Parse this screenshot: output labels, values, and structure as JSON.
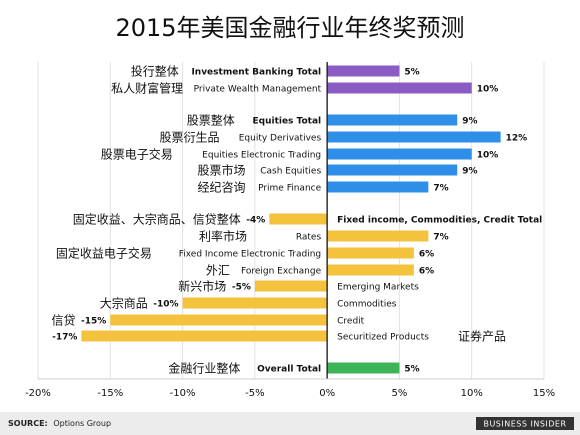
{
  "chart_data": {
    "type": "bar",
    "orientation": "horizontal",
    "title": "2015年美国金融行业年终奖预测",
    "x_ticks": [
      "-20%",
      "-15%",
      "-10%",
      "-5%",
      "0%",
      "5%",
      "10%",
      "15%"
    ],
    "xlim": [
      -20,
      15
    ],
    "grid": "vertical",
    "source": "Options Group",
    "source_label": "SOURCE:",
    "brand": "BUSINESS INSIDER",
    "colors": {
      "purple": "#8b5bc4",
      "blue": "#2f8fe8",
      "yellow": "#f5c23e",
      "green": "#3cb55a",
      "grid": "#e2e2e2",
      "zero": "#222222"
    },
    "rows": [
      {
        "zh": "投行整体",
        "en": "Investment Banking Total",
        "en_bold": true,
        "value": 5,
        "value_label": "5%",
        "color": "purple"
      },
      {
        "zh": "私人财富管理",
        "en": "Private Wealth Management",
        "en_bold": false,
        "value": 10,
        "value_label": "10%",
        "color": "purple"
      },
      {
        "zh": "股票整体",
        "en": "Equities Total",
        "en_bold": true,
        "value": 9,
        "value_label": "9%",
        "color": "blue"
      },
      {
        "zh": "股票衍生品",
        "en": "Equity Derivatives",
        "en_bold": false,
        "value": 12,
        "value_label": "12%",
        "color": "blue"
      },
      {
        "zh": "股票电子交易",
        "en": "Equities Electronic Trading",
        "en_bold": false,
        "value": 10,
        "value_label": "10%",
        "color": "blue"
      },
      {
        "zh": "股票市场",
        "en": "Cash Equities",
        "en_bold": false,
        "value": 9,
        "value_label": "9%",
        "color": "blue"
      },
      {
        "zh": "经纪咨询",
        "en": "Prime Finance",
        "en_bold": false,
        "value": 7,
        "value_label": "7%",
        "color": "blue"
      },
      {
        "zh": "固定收益、大宗商品、信贷整体",
        "en": "Fixed income, Commodities, Credit Total",
        "en_bold": true,
        "value": -4,
        "value_label": "-4%",
        "color": "yellow"
      },
      {
        "zh": "利率市场",
        "en": "Rates",
        "en_bold": false,
        "value": 7,
        "value_label": "7%",
        "color": "yellow"
      },
      {
        "zh": "固定收益电子交易",
        "en": "Fixed Income Electronic Trading",
        "en_bold": false,
        "value": 6,
        "value_label": "6%",
        "color": "yellow"
      },
      {
        "zh": "外汇",
        "en": "Foreign Exchange",
        "en_bold": false,
        "value": 6,
        "value_label": "6%",
        "color": "yellow"
      },
      {
        "zh": "新兴市场",
        "en": "Emerging Markets",
        "en_bold": false,
        "value": -5,
        "value_label": "-5%",
        "color": "yellow"
      },
      {
        "zh": "大宗商品",
        "en": "Commodities",
        "en_bold": false,
        "value": -10,
        "value_label": "-10%",
        "color": "yellow"
      },
      {
        "zh": "信贷",
        "en": "Credit",
        "en_bold": false,
        "value": -15,
        "value_label": "-15%",
        "color": "yellow"
      },
      {
        "zh": "证券产品",
        "en": "Securitized Products",
        "en_bold": false,
        "value": -17,
        "value_label": "-17%",
        "color": "yellow"
      },
      {
        "zh": "金融行业整体",
        "en": "Overall Total",
        "en_bold": true,
        "value": 5,
        "value_label": "5%",
        "color": "green"
      }
    ]
  }
}
